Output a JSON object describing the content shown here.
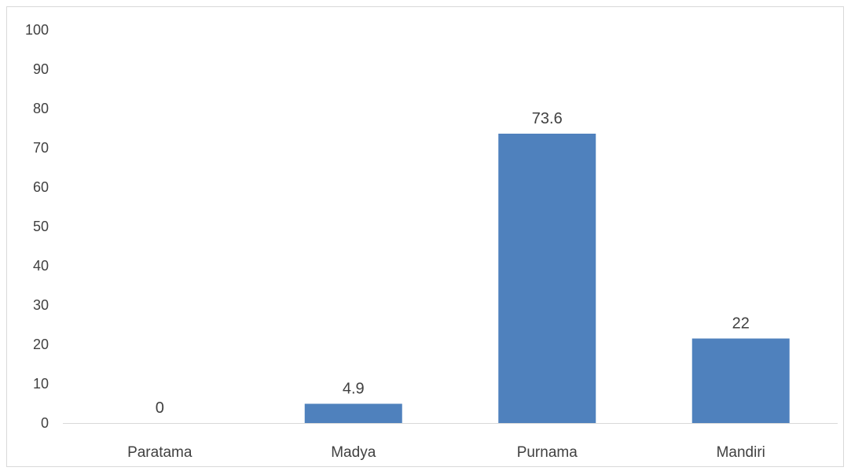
{
  "chart_data": {
    "type": "bar",
    "title": "",
    "xlabel": "",
    "ylabel": "",
    "categories": [
      "Paratama",
      "Madya",
      "Purnama",
      "Mandiri"
    ],
    "values": [
      0,
      4.9,
      73.6,
      21.5
    ],
    "data_labels": [
      "0",
      "4.9",
      "73.6",
      "22"
    ],
    "ylim": [
      0,
      100
    ],
    "yticks": [
      0,
      10,
      20,
      30,
      40,
      50,
      60,
      70,
      80,
      90,
      100
    ],
    "grid": false,
    "legend": "none",
    "colors": {
      "bar": "#4f81bd",
      "axis": "#d9d9d9",
      "text": "#404040",
      "frame": "#d9d9d9"
    }
  }
}
